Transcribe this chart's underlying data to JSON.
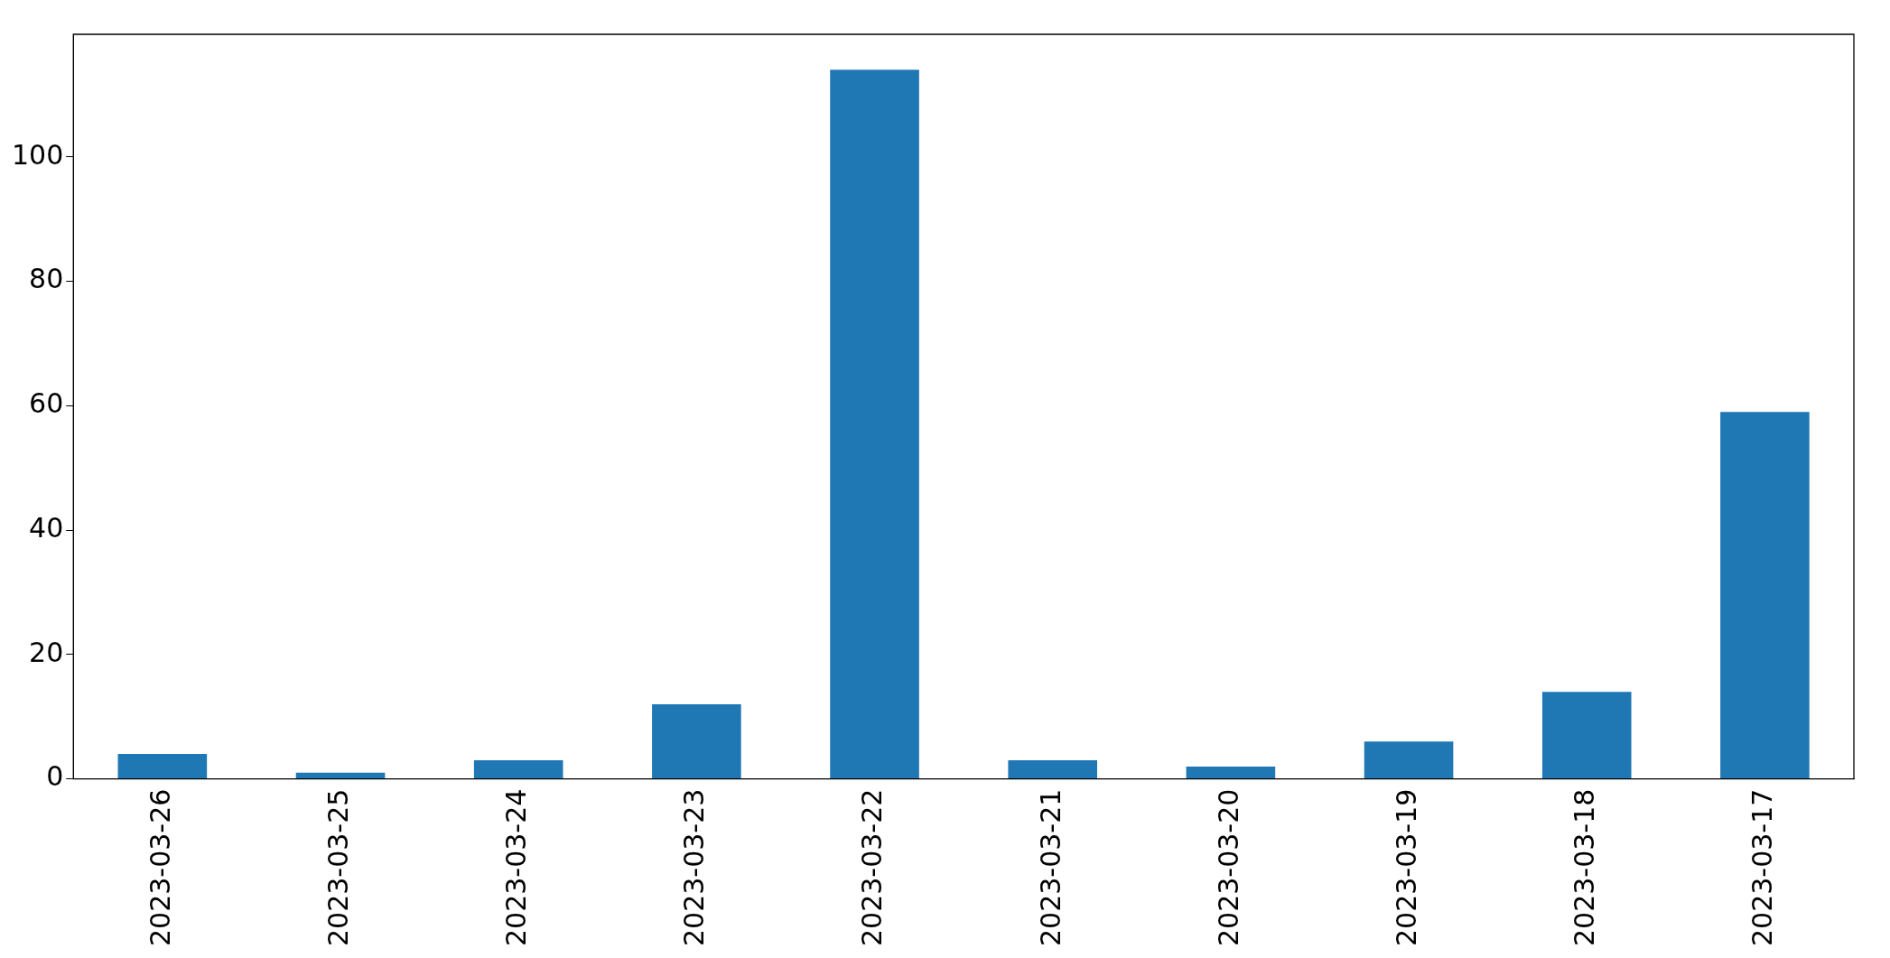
{
  "chart_data": {
    "type": "bar",
    "categories": [
      "2023-03-26",
      "2023-03-25",
      "2023-03-24",
      "2023-03-23",
      "2023-03-22",
      "2023-03-21",
      "2023-03-20",
      "2023-03-19",
      "2023-03-18",
      "2023-03-17"
    ],
    "values": [
      4,
      1,
      3,
      12,
      114,
      3,
      2,
      6,
      14,
      59
    ],
    "color": "#1f77b4",
    "ylim": [
      0,
      119.7
    ],
    "yticks": [
      0,
      20,
      40,
      60,
      80,
      100
    ]
  }
}
